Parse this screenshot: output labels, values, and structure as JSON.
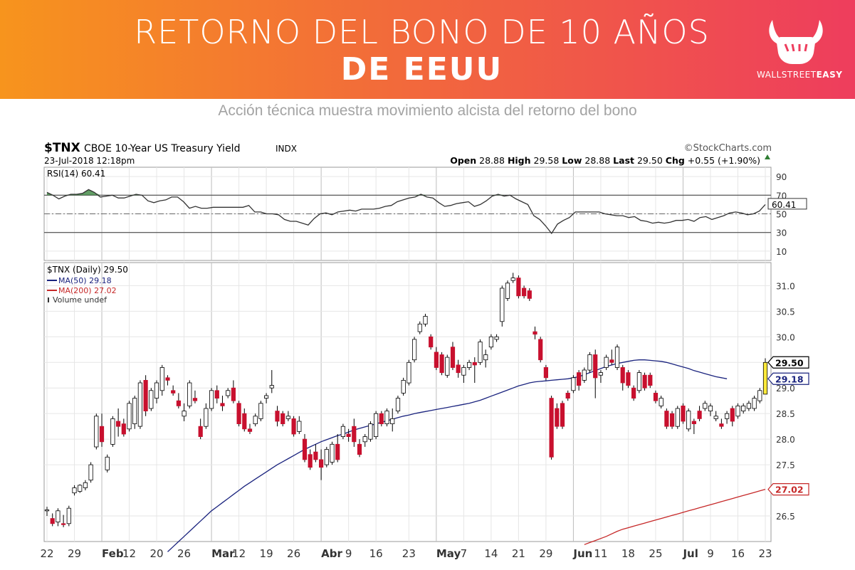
{
  "banner": {
    "title_line1": "RETORNO DEL BONO DE 10 AÑOS",
    "title_line2": "DE EEUU",
    "brand_prefix": "WALLSTREET",
    "brand_suffix": "EASY",
    "logo_icon": "bull-fist-icon"
  },
  "subtitle": "Acción técnica muestra movimiento alcista del retorno del bono",
  "chart_header": {
    "symbol": "$TNX",
    "name": "CBOE 10-Year US Treasury Yield",
    "exchange": "INDX",
    "date": "23-Jul-2018 12:18pm",
    "provider": "©StockCharts.com",
    "quote": "Open 28.88  High 29.58  Low 28.88  Last 29.50  Chg +0.55 (+1.90%)",
    "quote_parts": {
      "open_label": "Open",
      "open": "28.88",
      "high_label": "High",
      "high": "29.58",
      "low_label": "Low",
      "low": "28.88",
      "last_label": "Last",
      "last": "29.50",
      "chg_label": "Chg",
      "chg": "+0.55 (+1.90%)"
    }
  },
  "chart_data": {
    "type": "candlestick",
    "title": "$TNX CBOE 10-Year US Treasury Yield INDX",
    "x_ticks": [
      "22",
      "29",
      "Feb",
      "12",
      "20",
      "26",
      "Mar",
      "12",
      "19",
      "26",
      "Abr",
      "9",
      "16",
      "23",
      "May",
      "7",
      "14",
      "21",
      "29",
      "Jun",
      "11",
      "18",
      "25",
      "Jul",
      "9",
      "16",
      "23"
    ],
    "rsi": {
      "label": "RSI(14) 60.41",
      "last": "60.41",
      "ylim": [
        0,
        100
      ],
      "ticks": [
        "90",
        "70",
        "50",
        "30",
        "10"
      ],
      "levels": [
        70,
        50,
        30
      ],
      "values": [
        73,
        70,
        66,
        69,
        71,
        71,
        72,
        76,
        73,
        68,
        69,
        70,
        67,
        67,
        69,
        71,
        70,
        64,
        62,
        64,
        65,
        68,
        68,
        63,
        56,
        58,
        56,
        56,
        57,
        57,
        57,
        57,
        57,
        57,
        59,
        52,
        52,
        50,
        50,
        49,
        44,
        42,
        42,
        40,
        38,
        45,
        50,
        51,
        49,
        52,
        53,
        54,
        53,
        55,
        55,
        55,
        56,
        58,
        59,
        63,
        65,
        67,
        68,
        71,
        68,
        67,
        62,
        58,
        59,
        61,
        62,
        63,
        58,
        60,
        64,
        69,
        71,
        69,
        70,
        66,
        63,
        60,
        48,
        44,
        37,
        29,
        39,
        43,
        46,
        52,
        52,
        52,
        52,
        52,
        50,
        49,
        48,
        48,
        46,
        47,
        43,
        42,
        40,
        41,
        40,
        41,
        43,
        43,
        44,
        42,
        46,
        47,
        44,
        46,
        48,
        51,
        52,
        51,
        49,
        50,
        53,
        60
      ]
    },
    "price": {
      "label": "$TNX (Daily) 29.50",
      "ylim": [
        26.0,
        31.45
      ],
      "ticks": [
        "31.0",
        "30.5",
        "30.0",
        "29.5",
        "29.0",
        "28.5",
        "28.0",
        "27.5",
        "26.5"
      ],
      "legend": [
        {
          "label": "MA(50) 29.18",
          "color": "#1a237e"
        },
        {
          "label": "MA(200) 27.02",
          "color": "#c62828"
        },
        {
          "label": "Volume undef",
          "color": "#333333"
        }
      ],
      "last_tags": [
        {
          "text": "29.50",
          "value": 29.5,
          "color": "#000000"
        },
        {
          "text": "29.18",
          "value": 29.18,
          "color": "#1a237e"
        },
        {
          "text": "27.02",
          "value": 27.02,
          "color": "#c62828"
        }
      ],
      "up_color": "#ffffff",
      "down_color": "#c8102e",
      "last_color": "#ffeb3b",
      "ohlc": [
        [
          26.6,
          26.68,
          26.5,
          26.62
        ],
        [
          26.45,
          26.55,
          26.3,
          26.35
        ],
        [
          26.38,
          26.65,
          26.3,
          26.6
        ],
        [
          26.35,
          26.52,
          26.28,
          26.33
        ],
        [
          26.35,
          26.7,
          26.3,
          26.65
        ],
        [
          26.95,
          27.1,
          26.9,
          27.05
        ],
        [
          26.98,
          27.12,
          26.95,
          27.1
        ],
        [
          27.05,
          27.2,
          27.0,
          27.15
        ],
        [
          27.2,
          27.55,
          27.15,
          27.5
        ],
        [
          27.85,
          28.5,
          27.8,
          28.45
        ],
        [
          28.25,
          28.5,
          27.85,
          27.95
        ],
        [
          27.4,
          27.7,
          27.35,
          27.65
        ],
        [
          27.9,
          28.45,
          27.85,
          28.4
        ],
        [
          28.35,
          28.6,
          28.05,
          28.25
        ],
        [
          28.3,
          28.4,
          28.05,
          28.1
        ],
        [
          28.2,
          28.75,
          28.15,
          28.7
        ],
        [
          28.3,
          28.85,
          28.2,
          28.8
        ],
        [
          28.25,
          29.15,
          28.2,
          29.1
        ],
        [
          29.15,
          29.25,
          28.45,
          28.55
        ],
        [
          28.6,
          29.0,
          28.55,
          28.95
        ],
        [
          28.8,
          29.15,
          28.7,
          29.1
        ],
        [
          28.95,
          29.45,
          28.85,
          29.4
        ],
        [
          29.2,
          29.25,
          29.05,
          29.15
        ],
        [
          28.95,
          29.05,
          28.85,
          28.9
        ],
        [
          28.75,
          28.9,
          28.6,
          28.65
        ],
        [
          28.45,
          28.7,
          28.35,
          28.55
        ],
        [
          28.65,
          29.15,
          28.6,
          29.1
        ],
        [
          28.8,
          28.95,
          28.7,
          28.75
        ],
        [
          28.25,
          28.4,
          28.0,
          28.05
        ],
        [
          28.25,
          28.7,
          28.2,
          28.6
        ],
        [
          28.6,
          29.0,
          28.55,
          28.95
        ],
        [
          28.95,
          29.05,
          28.7,
          28.8
        ],
        [
          28.7,
          28.85,
          28.55,
          28.65
        ],
        [
          28.85,
          29.0,
          28.8,
          28.95
        ],
        [
          29.0,
          29.15,
          28.7,
          28.75
        ],
        [
          28.7,
          28.75,
          28.25,
          28.3
        ],
        [
          28.5,
          28.6,
          28.15,
          28.2
        ],
        [
          28.2,
          28.3,
          28.1,
          28.15
        ],
        [
          28.3,
          28.5,
          28.25,
          28.45
        ],
        [
          28.4,
          28.75,
          28.35,
          28.7
        ],
        [
          28.8,
          28.9,
          28.7,
          28.85
        ],
        [
          29.0,
          29.35,
          28.9,
          29.05
        ],
        [
          28.55,
          28.65,
          28.25,
          28.35
        ],
        [
          28.5,
          28.55,
          28.25,
          28.3
        ],
        [
          28.4,
          28.55,
          28.35,
          28.45
        ],
        [
          28.4,
          28.45,
          28.05,
          28.1
        ],
        [
          28.15,
          28.45,
          28.1,
          28.35
        ],
        [
          28.0,
          28.1,
          27.55,
          27.6
        ],
        [
          27.7,
          27.8,
          27.4,
          27.45
        ],
        [
          27.75,
          27.9,
          27.55,
          27.6
        ],
        [
          27.6,
          27.8,
          27.2,
          27.45
        ],
        [
          27.5,
          27.85,
          27.45,
          27.8
        ],
        [
          27.55,
          27.95,
          27.5,
          27.9
        ],
        [
          27.9,
          28.1,
          27.55,
          27.6
        ],
        [
          28.05,
          28.3,
          28.0,
          28.25
        ],
        [
          28.1,
          28.2,
          27.95,
          28.05
        ],
        [
          28.25,
          28.4,
          27.85,
          27.95
        ],
        [
          27.9,
          28.0,
          27.65,
          27.7
        ],
        [
          27.95,
          28.1,
          27.85,
          28.05
        ],
        [
          28.0,
          28.35,
          27.95,
          28.3
        ],
        [
          28.05,
          28.55,
          28.0,
          28.5
        ],
        [
          28.5,
          28.55,
          28.25,
          28.3
        ],
        [
          28.3,
          28.6,
          28.25,
          28.55
        ],
        [
          28.3,
          28.6,
          28.15,
          28.4
        ],
        [
          28.55,
          28.85,
          28.5,
          28.8
        ],
        [
          28.9,
          29.2,
          28.85,
          29.15
        ],
        [
          29.1,
          29.55,
          29.05,
          29.5
        ],
        [
          29.55,
          30.0,
          29.5,
          29.95
        ],
        [
          30.1,
          30.3,
          30.05,
          30.25
        ],
        [
          30.25,
          30.45,
          30.2,
          30.4
        ],
        [
          30.0,
          30.05,
          29.75,
          29.8
        ],
        [
          29.7,
          29.8,
          29.35,
          29.4
        ],
        [
          29.65,
          29.7,
          29.25,
          29.3
        ],
        [
          29.25,
          29.65,
          29.2,
          29.6
        ],
        [
          29.8,
          29.9,
          29.35,
          29.4
        ],
        [
          29.45,
          29.55,
          29.2,
          29.3
        ],
        [
          29.25,
          29.45,
          29.1,
          29.4
        ],
        [
          29.4,
          29.55,
          29.35,
          29.5
        ],
        [
          29.5,
          29.6,
          29.1,
          29.45
        ],
        [
          29.5,
          29.95,
          29.45,
          29.9
        ],
        [
          29.55,
          29.75,
          29.4,
          29.65
        ],
        [
          29.8,
          30.05,
          29.75,
          30.0
        ],
        [
          29.95,
          30.05,
          29.9,
          30.0
        ],
        [
          30.3,
          31.0,
          30.2,
          30.95
        ],
        [
          30.75,
          31.1,
          30.7,
          31.05
        ],
        [
          31.1,
          31.25,
          31.05,
          31.15
        ],
        [
          31.15,
          31.2,
          30.75,
          30.8
        ],
        [
          30.95,
          31.0,
          30.75,
          30.8
        ],
        [
          30.9,
          30.95,
          30.7,
          30.75
        ],
        [
          30.1,
          30.2,
          29.95,
          30.05
        ],
        [
          29.95,
          30.0,
          29.5,
          29.55
        ],
        [
          29.4,
          29.45,
          29.15,
          29.2
        ],
        [
          28.8,
          28.85,
          27.6,
          27.65
        ],
        [
          28.6,
          28.7,
          28.2,
          28.25
        ],
        [
          28.7,
          28.75,
          28.2,
          28.25
        ],
        [
          28.9,
          28.95,
          28.75,
          28.8
        ],
        [
          28.95,
          29.25,
          28.9,
          29.2
        ],
        [
          29.3,
          29.35,
          28.95,
          29.05
        ],
        [
          29.15,
          29.4,
          29.1,
          29.35
        ],
        [
          29.35,
          29.7,
          29.3,
          29.65
        ],
        [
          29.65,
          29.75,
          28.8,
          29.2
        ],
        [
          29.25,
          29.35,
          29.1,
          29.3
        ],
        [
          29.4,
          29.65,
          29.35,
          29.6
        ],
        [
          29.55,
          29.75,
          29.45,
          29.5
        ],
        [
          29.4,
          29.85,
          29.35,
          29.8
        ],
        [
          29.4,
          29.45,
          28.95,
          29.1
        ],
        [
          29.3,
          29.35,
          29.0,
          29.05
        ],
        [
          29.0,
          29.05,
          28.75,
          28.8
        ],
        [
          28.95,
          29.35,
          28.9,
          29.3
        ],
        [
          29.25,
          29.3,
          28.95,
          29.0
        ],
        [
          29.25,
          29.3,
          29.0,
          29.05
        ],
        [
          28.9,
          28.95,
          28.7,
          28.75
        ],
        [
          28.65,
          28.85,
          28.6,
          28.8
        ],
        [
          28.55,
          28.6,
          28.2,
          28.25
        ],
        [
          28.5,
          28.55,
          28.2,
          28.25
        ],
        [
          28.25,
          28.65,
          28.2,
          28.6
        ],
        [
          28.65,
          28.7,
          28.3,
          28.35
        ],
        [
          28.2,
          28.6,
          28.15,
          28.55
        ],
        [
          28.35,
          28.4,
          28.1,
          28.3
        ],
        [
          28.55,
          28.65,
          28.35,
          28.4
        ],
        [
          28.6,
          28.75,
          28.55,
          28.7
        ],
        [
          28.55,
          28.7,
          28.45,
          28.65
        ],
        [
          28.4,
          28.55,
          28.35,
          28.45
        ],
        [
          28.3,
          28.4,
          28.2,
          28.25
        ],
        [
          28.4,
          28.55,
          28.3,
          28.5
        ],
        [
          28.6,
          28.65,
          28.25,
          28.35
        ],
        [
          28.45,
          28.7,
          28.4,
          28.65
        ],
        [
          28.55,
          28.7,
          28.5,
          28.65
        ],
        [
          28.6,
          28.75,
          28.55,
          28.7
        ],
        [
          28.6,
          28.85,
          28.55,
          28.8
        ],
        [
          28.75,
          29.0,
          28.7,
          28.95
        ],
        [
          28.88,
          29.58,
          28.88,
          29.5
        ]
      ],
      "ma50": [
        null,
        null,
        null,
        null,
        null,
        null,
        null,
        null,
        null,
        null,
        null,
        null,
        null,
        null,
        null,
        null,
        null,
        null,
        null,
        null,
        null,
        null,
        25.8,
        25.9,
        26.0,
        26.1,
        26.2,
        26.3,
        26.4,
        26.5,
        26.6,
        26.68,
        26.76,
        26.84,
        26.92,
        27.0,
        27.08,
        27.15,
        27.22,
        27.29,
        27.36,
        27.43,
        27.5,
        27.56,
        27.62,
        27.68,
        27.74,
        27.8,
        27.85,
        27.9,
        27.95,
        27.99,
        28.03,
        28.07,
        28.1,
        28.14,
        28.18,
        28.21,
        28.24,
        28.27,
        28.3,
        28.33,
        28.36,
        28.39,
        28.42,
        28.45,
        28.47,
        28.5,
        28.52,
        28.54,
        28.56,
        28.58,
        28.6,
        28.62,
        28.64,
        28.66,
        28.68,
        28.7,
        28.73,
        28.76,
        28.8,
        28.84,
        28.88,
        28.92,
        28.96,
        29.0,
        29.04,
        29.07,
        29.1,
        29.12,
        29.13,
        29.14,
        29.15,
        29.16,
        29.17,
        29.18,
        29.2,
        29.22,
        29.26,
        29.3,
        29.34,
        29.38,
        29.42,
        29.45,
        29.48,
        29.5,
        29.52,
        29.54,
        29.55,
        29.55,
        29.54,
        29.53,
        29.52,
        29.5,
        29.47,
        29.44,
        29.41,
        29.38,
        29.34,
        29.31,
        29.28,
        29.25,
        29.22,
        29.2,
        29.18
      ],
      "ma200": [
        null,
        null,
        null,
        null,
        null,
        null,
        null,
        null,
        null,
        null,
        null,
        null,
        null,
        null,
        null,
        null,
        null,
        null,
        null,
        null,
        null,
        null,
        null,
        null,
        null,
        null,
        null,
        null,
        null,
        null,
        null,
        null,
        null,
        null,
        null,
        null,
        null,
        null,
        null,
        null,
        null,
        null,
        null,
        null,
        null,
        null,
        null,
        null,
        null,
        null,
        null,
        null,
        null,
        null,
        null,
        null,
        null,
        null,
        null,
        null,
        null,
        null,
        null,
        null,
        null,
        null,
        null,
        null,
        null,
        null,
        null,
        null,
        null,
        null,
        null,
        null,
        null,
        null,
        null,
        null,
        null,
        null,
        null,
        null,
        null,
        null,
        null,
        null,
        null,
        null,
        null,
        null,
        null,
        null,
        null,
        null,
        null,
        null,
        25.94,
        25.98,
        26.02,
        26.06,
        26.1,
        26.15,
        26.2,
        26.24,
        26.27,
        26.3,
        26.33,
        26.36,
        26.39,
        26.42,
        26.45,
        26.48,
        26.51,
        26.54,
        26.57,
        26.6,
        26.63,
        26.66,
        26.69,
        26.72,
        26.75,
        26.78,
        26.81,
        26.84,
        26.87,
        26.9,
        26.93,
        26.96,
        26.99,
        27.02
      ]
    }
  }
}
